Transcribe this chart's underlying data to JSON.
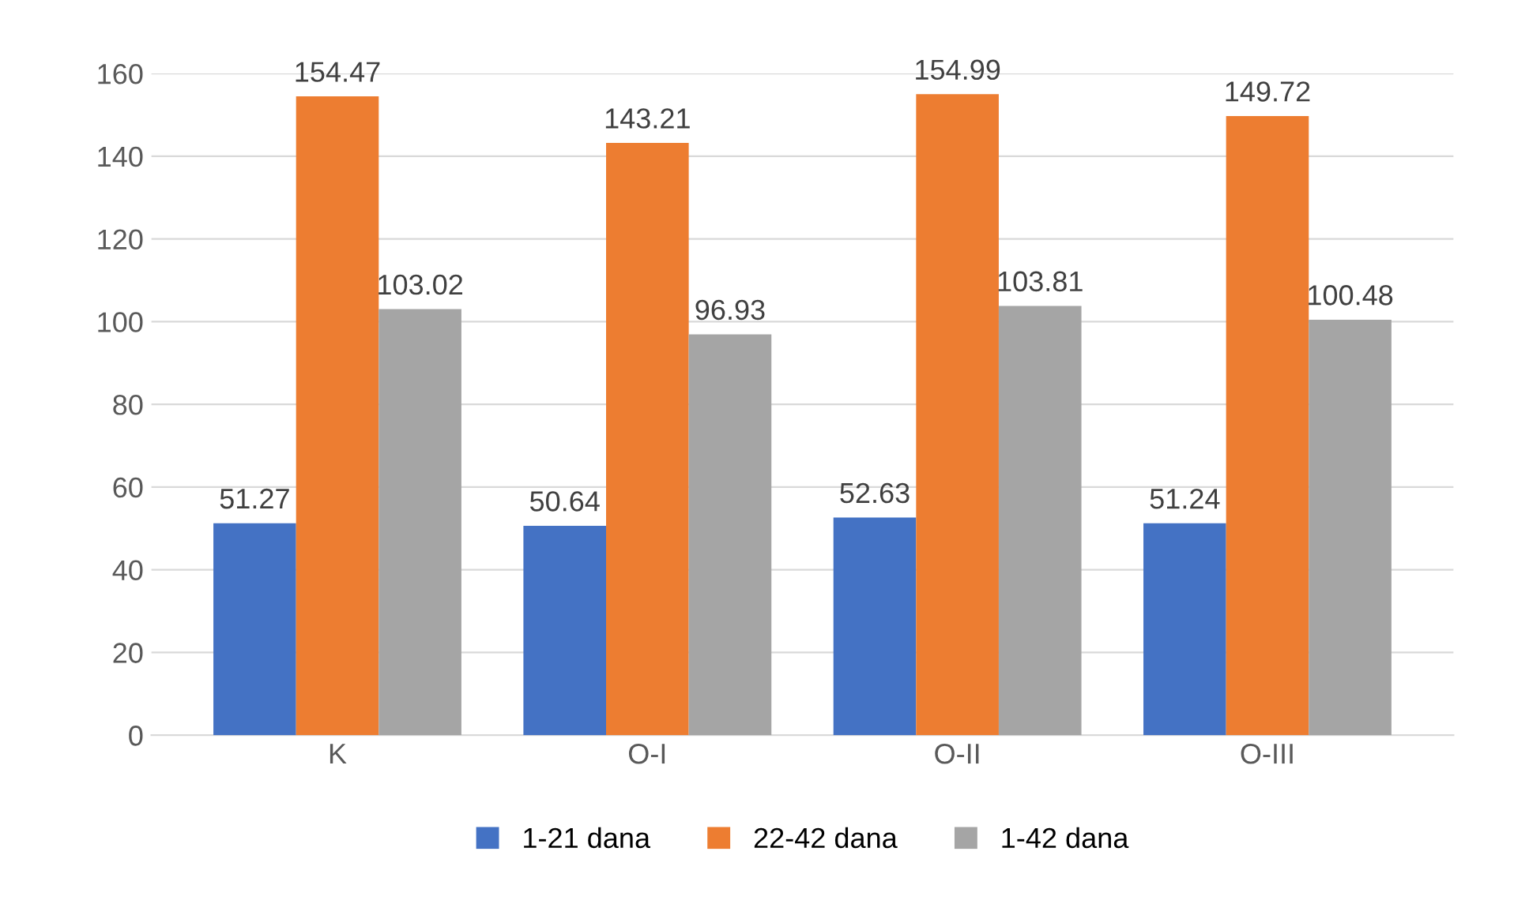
{
  "chart_data": {
    "type": "bar",
    "categories": [
      "K",
      "O-I",
      "O-II",
      "O-III"
    ],
    "series": [
      {
        "name": "1-21 dana",
        "color": "#4472c4",
        "values": [
          51.27,
          50.64,
          52.63,
          51.24
        ]
      },
      {
        "name": "22-42 dana",
        "color": "#ed7d31",
        "values": [
          154.47,
          143.21,
          154.99,
          149.72
        ]
      },
      {
        "name": "1-42 dana",
        "color": "#a5a5a5",
        "values": [
          103.02,
          96.93,
          103.81,
          100.48
        ]
      }
    ],
    "ylim": [
      0,
      160
    ],
    "yticks": [
      0,
      20,
      40,
      60,
      80,
      100,
      120,
      140,
      160
    ],
    "grid": "y",
    "legend": "bottom",
    "data_labels": true
  }
}
